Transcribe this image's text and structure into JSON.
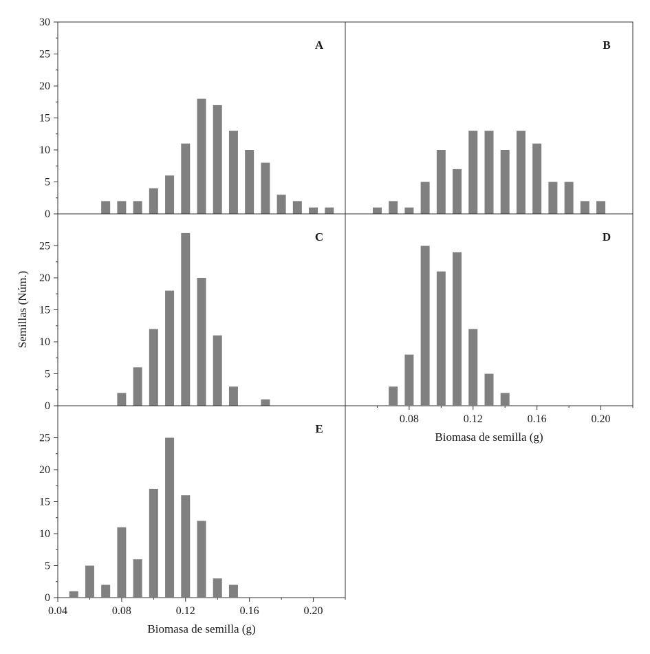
{
  "chart_data": {
    "type": "bar",
    "ylabel": "Semillas (Núm.)",
    "xlabel": "Biomasa de semilla (g)",
    "xlim": [
      0.04,
      0.22
    ],
    "ylim": [
      0,
      30
    ],
    "x_ticks": [
      "0.04",
      "0.08",
      "0.12",
      "0.16",
      "0.20"
    ],
    "panels": [
      {
        "label": "A",
        "y_ticks": [
          "0",
          "5",
          "10",
          "15",
          "20",
          "25",
          "30"
        ],
        "x": [
          0.07,
          0.08,
          0.09,
          0.1,
          0.11,
          0.12,
          0.13,
          0.14,
          0.15,
          0.16,
          0.17,
          0.18,
          0.19,
          0.2,
          0.21
        ],
        "values": [
          2,
          2,
          2,
          4,
          6,
          11,
          18,
          17,
          13,
          10,
          8,
          3,
          2,
          1,
          1
        ]
      },
      {
        "label": "B",
        "y_ticks": [],
        "x": [
          0.06,
          0.07,
          0.08,
          0.09,
          0.1,
          0.11,
          0.12,
          0.13,
          0.14,
          0.15,
          0.16,
          0.17,
          0.18,
          0.19,
          0.2
        ],
        "values": [
          1,
          2,
          1,
          5,
          10,
          7,
          13,
          13,
          10,
          13,
          11,
          5,
          5,
          2,
          2
        ]
      },
      {
        "label": "C",
        "y_ticks": [
          "0",
          "5",
          "10",
          "15",
          "20",
          "25"
        ],
        "x": [
          0.08,
          0.09,
          0.1,
          0.11,
          0.12,
          0.13,
          0.14,
          0.15,
          0.16,
          0.17
        ],
        "values": [
          2,
          6,
          12,
          18,
          27,
          20,
          11,
          3,
          0,
          1
        ]
      },
      {
        "label": "D",
        "y_ticks": [],
        "x_ticks": [
          "0.08",
          "0.12",
          "0.16",
          "0.20"
        ],
        "xlabel": "Biomasa de semilla (g)",
        "x": [
          0.07,
          0.08,
          0.09,
          0.1,
          0.11,
          0.12,
          0.13,
          0.14
        ],
        "values": [
          3,
          8,
          25,
          21,
          24,
          12,
          5,
          2
        ]
      },
      {
        "label": "E",
        "y_ticks": [
          "0",
          "5",
          "10",
          "15",
          "20",
          "25"
        ],
        "x_ticks": [
          "0.04",
          "0.08",
          "0.12",
          "0.16",
          "0.20"
        ],
        "xlabel": "Biomasa de semilla (g)",
        "x": [
          0.05,
          0.06,
          0.07,
          0.08,
          0.09,
          0.1,
          0.11,
          0.12,
          0.13,
          0.14,
          0.15
        ],
        "values": [
          1,
          5,
          2,
          11,
          6,
          17,
          25,
          16,
          12,
          3,
          2
        ]
      }
    ]
  }
}
